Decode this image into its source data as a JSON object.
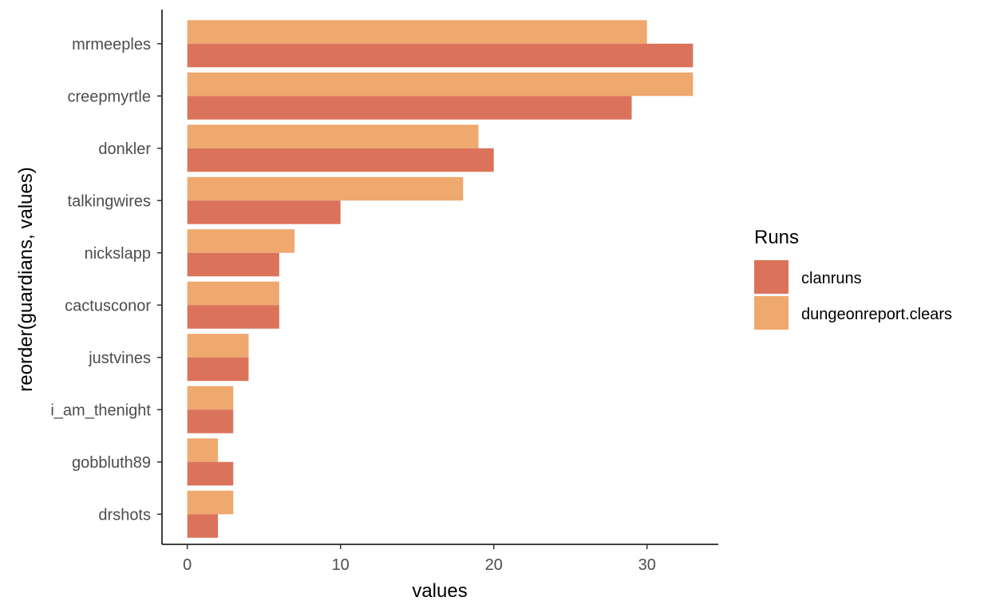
{
  "chart_data": {
    "type": "bar",
    "orientation": "horizontal",
    "categories": [
      "mrmeeples",
      "creepmyrtle",
      "donkler",
      "talkingwires",
      "nickslapp",
      "cactusconor",
      "justvines",
      "i_am_thenight",
      "gobbluth89",
      "drshots"
    ],
    "series": [
      {
        "name": "clanruns",
        "color": "#DB735B",
        "values": [
          33,
          29,
          20,
          10,
          6,
          6,
          4,
          3,
          3,
          2
        ]
      },
      {
        "name": "dungeonreport.clears",
        "color": "#EFA86E",
        "values": [
          30,
          33,
          19,
          18,
          7,
          6,
          4,
          3,
          2,
          3
        ]
      }
    ],
    "xlabel": "values",
    "ylabel": "reorder(guardians, values)",
    "xlim": [
      -1.65,
      34.65
    ],
    "xticks": [
      0,
      10,
      20,
      30
    ],
    "xtick_labels": [
      "0",
      "10",
      "20",
      "30"
    ],
    "grid": false,
    "legend": {
      "title": "Runs",
      "position": "right"
    }
  }
}
